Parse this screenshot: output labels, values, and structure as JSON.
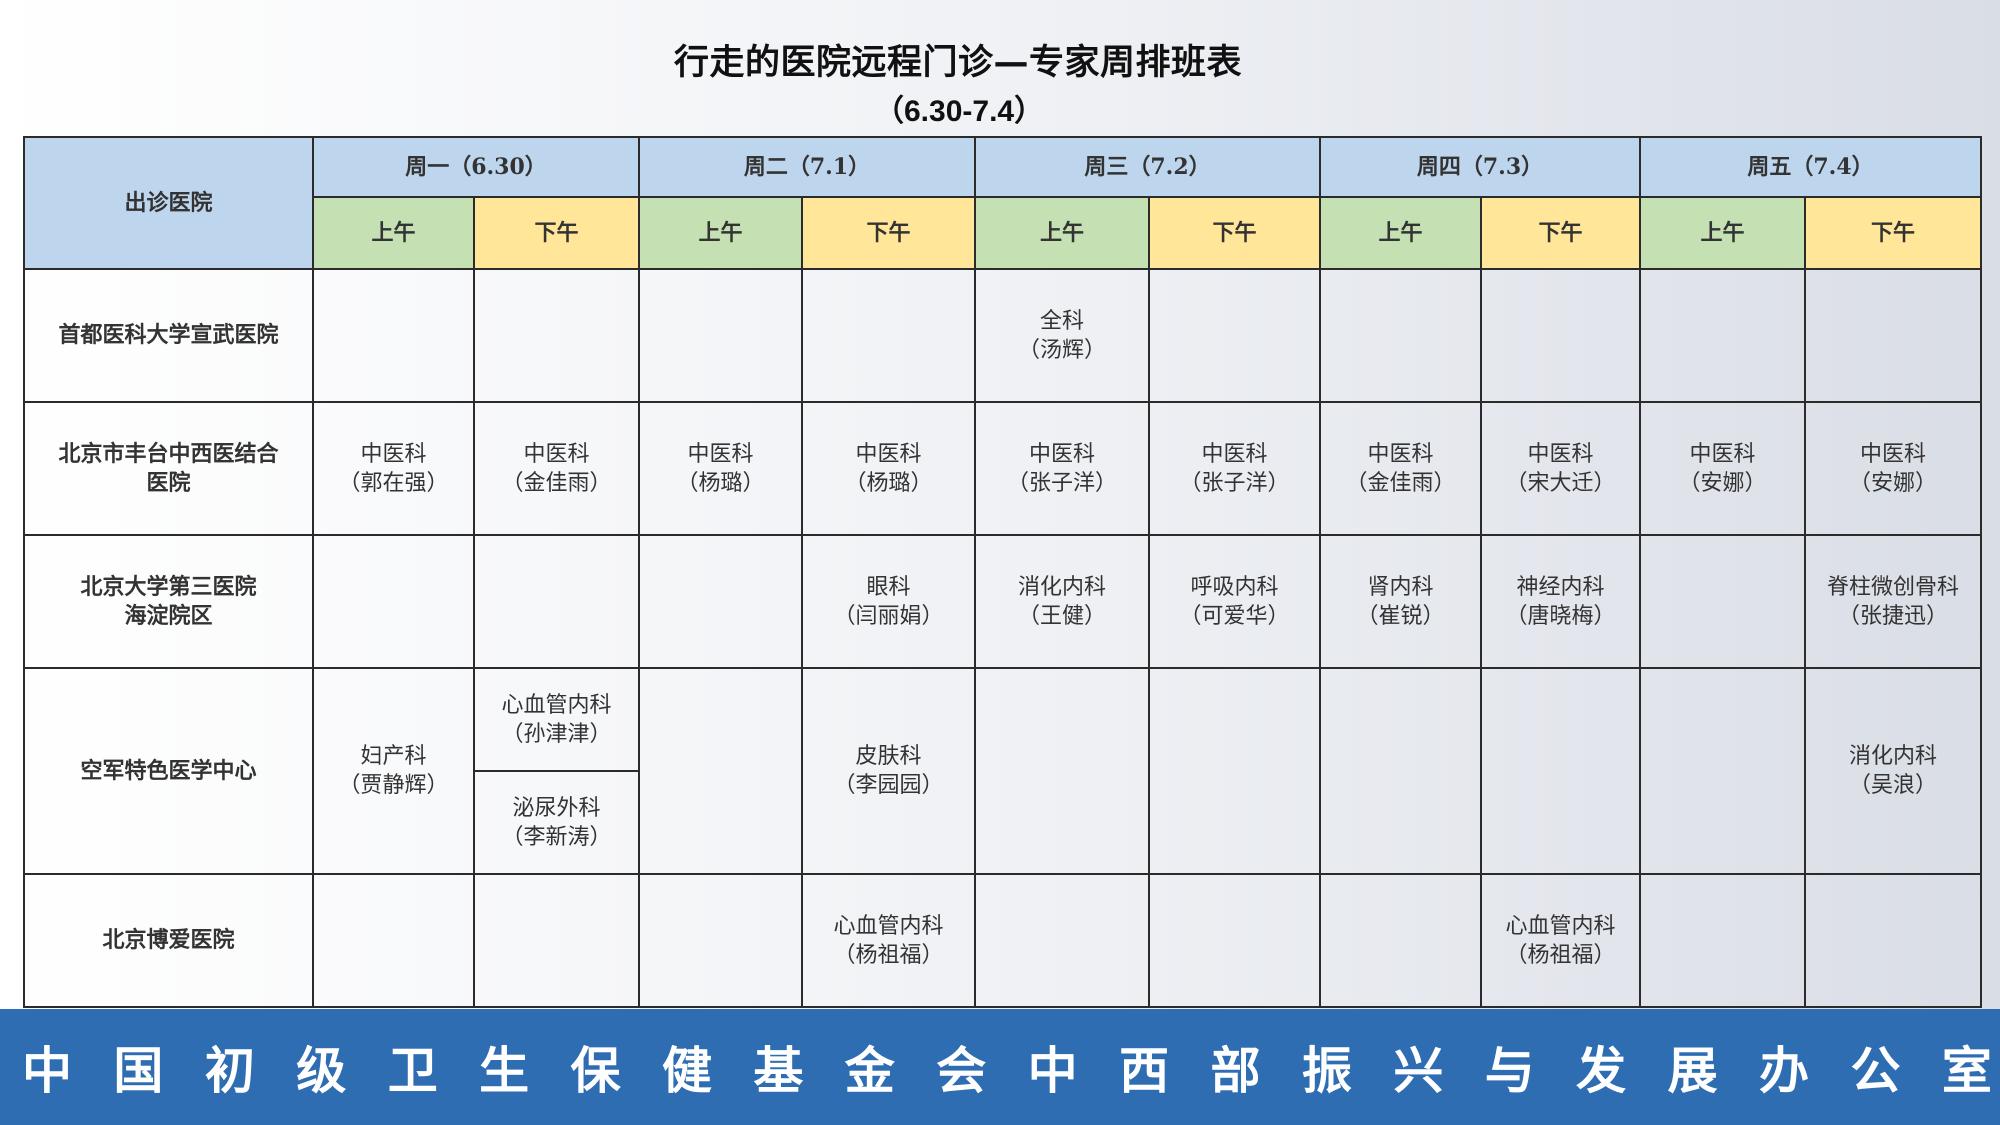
{
  "title": "行走的医院远程门诊—专家周排班表",
  "subtitle": "（6.30-7.4）",
  "table": {
    "hospital_header": "出诊医院",
    "days": [
      "周一（6.30）",
      "周二（7.1）",
      "周三（7.2）",
      "周四（7.3）",
      "周五（7.4）"
    ],
    "am_label": "上午",
    "pm_label": "下午",
    "rows": [
      {
        "hospital": [
          "首都医科大学宣武医院"
        ],
        "cells": [
          [],
          [],
          [],
          [],
          [
            "全科",
            "（汤辉）"
          ],
          [],
          [],
          [],
          [],
          []
        ]
      },
      {
        "hospital": [
          "北京市丰台中西医结合",
          "医院"
        ],
        "cells": [
          [
            "中医科",
            "（郭在强）"
          ],
          [
            "中医科",
            "（金佳雨）"
          ],
          [
            "中医科",
            "（杨璐）"
          ],
          [
            "中医科",
            "（杨璐）"
          ],
          [
            "中医科",
            "（张子洋）"
          ],
          [
            "中医科",
            "（张子洋）"
          ],
          [
            "中医科",
            "（金佳雨）"
          ],
          [
            "中医科",
            "（宋大迁）"
          ],
          [
            "中医科",
            "（安娜）"
          ],
          [
            "中医科",
            "（安娜）"
          ]
        ]
      },
      {
        "hospital": [
          "北京大学第三医院",
          "海淀院区"
        ],
        "cells": [
          [],
          [],
          [],
          [
            "眼科",
            "（闫丽娟）"
          ],
          [
            "消化内科",
            "（王健）"
          ],
          [
            "呼吸内科",
            "（可爱华）"
          ],
          [
            "肾内科",
            "（崔锐）"
          ],
          [
            "神经内科",
            "（唐晓梅）"
          ],
          [],
          [
            "脊柱微创骨科",
            "（张捷迅）"
          ]
        ]
      },
      {
        "hospital": [
          "空军特色医学中心"
        ],
        "mon_am": [
          "妇产科",
          "（贾静辉）"
        ],
        "mon_pm_top": [
          "心血管内科",
          "（孙津津）"
        ],
        "mon_pm_bottom": [
          "泌尿外科",
          "（李新涛）"
        ],
        "cells_after": [
          [],
          [
            "皮肤科",
            "（李园园）"
          ],
          [],
          [],
          [],
          [],
          [],
          [
            "消化内科",
            "（吴浪）"
          ]
        ]
      },
      {
        "hospital": [
          "北京博爱医院"
        ],
        "cells": [
          [],
          [],
          [],
          [
            "心血管内科",
            "（杨祖福）"
          ],
          [],
          [],
          [],
          [
            "心血管内科",
            "（杨祖福）"
          ],
          [],
          []
        ]
      }
    ]
  },
  "footer": "中国初级卫生保健基金会中西部振兴与发展办公室"
}
